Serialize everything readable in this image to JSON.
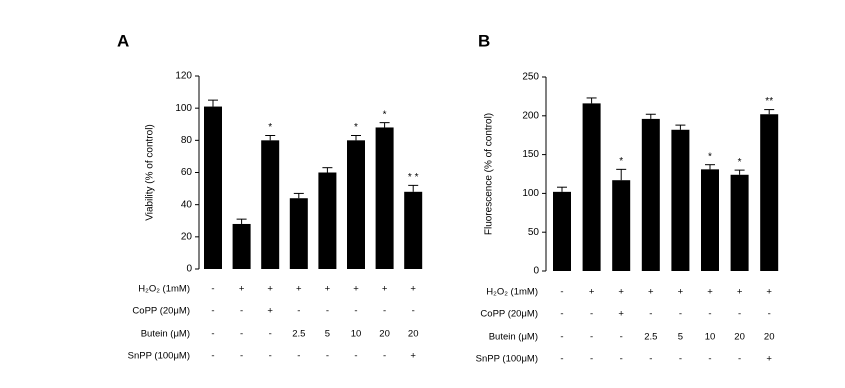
{
  "chart_data": [
    {
      "type": "bar",
      "panel": "A",
      "y_label": "Viability (% of control)",
      "color": "#000000",
      "values": [
        101,
        28,
        80,
        44,
        60,
        80,
        88,
        48
      ],
      "errors": [
        4,
        3,
        3,
        3,
        3,
        3,
        3,
        4
      ],
      "annotations": [
        null,
        null,
        "*",
        null,
        null,
        "*",
        "*",
        "* *"
      ],
      "ylim": [
        0,
        120
      ],
      "yticks": [
        0,
        20,
        40,
        60,
        80,
        100,
        120
      ],
      "conditions": [
        {
          "label": "H₂O₂ (1mM)",
          "values": [
            "-",
            "+",
            "+",
            "+",
            "+",
            "+",
            "+",
            "+"
          ]
        },
        {
          "label": "CoPP (20μM)",
          "values": [
            "-",
            "-",
            "+",
            "-",
            "-",
            "-",
            "-",
            "-"
          ]
        },
        {
          "label": "Butein (μM)",
          "values": [
            "-",
            "-",
            "-",
            "2.5",
            "5",
            "10",
            "20",
            "20"
          ]
        },
        {
          "label": "SnPP (100μM)",
          "values": [
            "-",
            "-",
            "-",
            "-",
            "-",
            "-",
            "-",
            "+"
          ]
        }
      ]
    },
    {
      "type": "bar",
      "panel": "B",
      "y_label": "Fluorescence (% of control)",
      "color": "#000000",
      "values": [
        102,
        216,
        117,
        196,
        182,
        131,
        124,
        202
      ],
      "errors": [
        6,
        7,
        14,
        6,
        6,
        6,
        6,
        6
      ],
      "annotations": [
        null,
        null,
        "*",
        null,
        null,
        "*",
        "*",
        "**"
      ],
      "ylim": [
        0,
        250
      ],
      "yticks": [
        0,
        50,
        100,
        150,
        200,
        250
      ],
      "conditions": [
        {
          "label": "H₂O₂ (1mM)",
          "values": [
            "-",
            "+",
            "+",
            "+",
            "+",
            "+",
            "+",
            "+"
          ]
        },
        {
          "label": "CoPP (20μM)",
          "values": [
            "-",
            "-",
            "+",
            "-",
            "-",
            "-",
            "-",
            "-"
          ]
        },
        {
          "label": "Butein (μM)",
          "values": [
            "-",
            "-",
            "-",
            "2.5",
            "5",
            "10",
            "20",
            "20"
          ]
        },
        {
          "label": "SnPP (100μM)",
          "values": [
            "-",
            "-",
            "-",
            "-",
            "-",
            "-",
            "-",
            "+"
          ]
        }
      ]
    }
  ]
}
